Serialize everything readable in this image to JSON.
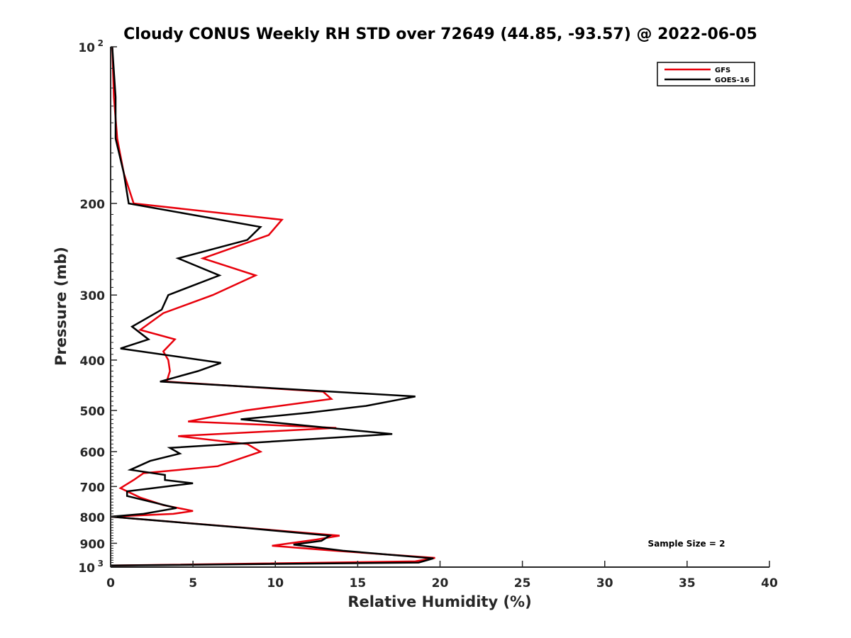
{
  "chart_data": {
    "type": "line",
    "title": "Cloudy CONUS Weekly RH STD over 72649 (44.85, -93.57) @ 2022-06-05",
    "xlabel": "Relative Humidity (%)",
    "ylabel": "Pressure (mb)",
    "xlim": [
      0,
      40
    ],
    "ylim": [
      100,
      1000
    ],
    "yscale": "log",
    "y_reversed": true,
    "xticks": [
      0,
      5,
      10,
      15,
      20,
      25,
      30,
      35,
      40
    ],
    "yticks": [
      {
        "value": 100,
        "label": "10",
        "sup": "2"
      },
      {
        "value": 200,
        "label": "200"
      },
      {
        "value": 300,
        "label": "300"
      },
      {
        "value": 400,
        "label": "400"
      },
      {
        "value": 500,
        "label": "500"
      },
      {
        "value": 600,
        "label": "600"
      },
      {
        "value": 700,
        "label": "700"
      },
      {
        "value": 800,
        "label": "800"
      },
      {
        "value": 900,
        "label": "900"
      },
      {
        "value": 1000,
        "label": "10",
        "sup": "3"
      }
    ],
    "grid": false,
    "legend_position": "top-right",
    "annotation": "Sample Size = 2",
    "series": [
      {
        "name": "GFS",
        "color": "#e8000b",
        "points": [
          [
            0.1,
            100
          ],
          [
            0.2,
            125
          ],
          [
            0.4,
            150
          ],
          [
            0.8,
            175
          ],
          [
            1.4,
            200
          ],
          [
            10.4,
            215
          ],
          [
            9.6,
            230
          ],
          [
            5.6,
            255
          ],
          [
            8.8,
            275
          ],
          [
            6.2,
            300
          ],
          [
            3.2,
            325
          ],
          [
            1.8,
            350
          ],
          [
            3.9,
            365
          ],
          [
            3.2,
            385
          ],
          [
            3.5,
            400
          ],
          [
            3.6,
            420
          ],
          [
            3.4,
            440
          ],
          [
            12.9,
            460
          ],
          [
            13.4,
            475
          ],
          [
            8.2,
            500
          ],
          [
            4.7,
            525
          ],
          [
            13.7,
            540
          ],
          [
            4.1,
            560
          ],
          [
            8.3,
            580
          ],
          [
            9.1,
            600
          ],
          [
            6.5,
            640
          ],
          [
            2.0,
            660
          ],
          [
            1.4,
            680
          ],
          [
            0.6,
            705
          ],
          [
            1.8,
            735
          ],
          [
            3.2,
            760
          ],
          [
            5.0,
            780
          ],
          [
            3.8,
            790
          ],
          [
            0,
            800
          ],
          [
            8.1,
            840
          ],
          [
            13.9,
            870
          ],
          [
            12.5,
            885
          ],
          [
            9.8,
            910
          ],
          [
            13.6,
            930
          ],
          [
            19.7,
            960
          ],
          [
            18.5,
            975
          ],
          [
            0,
            993
          ]
        ]
      },
      {
        "name": "GOES-16",
        "color": "#000000",
        "points": [
          [
            0.1,
            100
          ],
          [
            0.3,
            125
          ],
          [
            0.3,
            150
          ],
          [
            0.8,
            175
          ],
          [
            1.1,
            200
          ],
          [
            9.1,
            222
          ],
          [
            8.3,
            235
          ],
          [
            4.1,
            255
          ],
          [
            6.6,
            275
          ],
          [
            3.5,
            300
          ],
          [
            3.1,
            320
          ],
          [
            1.3,
            345
          ],
          [
            2.3,
            365
          ],
          [
            0.6,
            380
          ],
          [
            6.7,
            405
          ],
          [
            5.3,
            420
          ],
          [
            3.0,
            440
          ],
          [
            18.5,
            470
          ],
          [
            15.5,
            490
          ],
          [
            12.0,
            505
          ],
          [
            7.9,
            520
          ],
          [
            17.1,
            555
          ],
          [
            3.6,
            590
          ],
          [
            4.2,
            605
          ],
          [
            2.4,
            625
          ],
          [
            1.2,
            650
          ],
          [
            3.3,
            665
          ],
          [
            3.3,
            680
          ],
          [
            5.0,
            690
          ],
          [
            1.0,
            715
          ],
          [
            1.0,
            730
          ],
          [
            4.0,
            770
          ],
          [
            2.0,
            790
          ],
          [
            0,
            800
          ],
          [
            8.0,
            840
          ],
          [
            13.3,
            870
          ],
          [
            12.8,
            890
          ],
          [
            11.1,
            905
          ],
          [
            14.1,
            930
          ],
          [
            19.6,
            962
          ],
          [
            18.7,
            980
          ],
          [
            0,
            993
          ]
        ]
      }
    ]
  }
}
